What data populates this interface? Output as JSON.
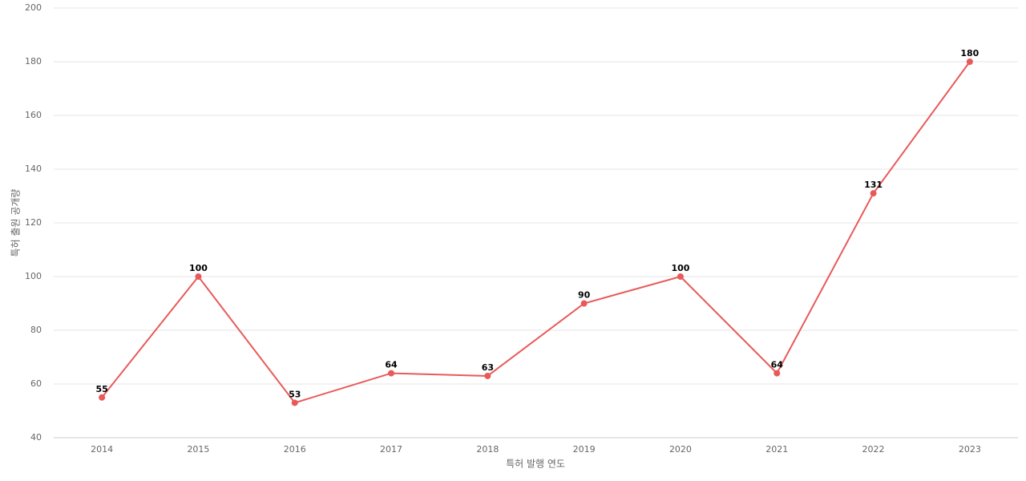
{
  "chart_data": {
    "type": "line",
    "x_label": "특허 발행 연도",
    "y_label": "특허 출원 공개량",
    "categories": [
      "2014",
      "2015",
      "2016",
      "2017",
      "2018",
      "2019",
      "2020",
      "2021",
      "2022",
      "2023"
    ],
    "series": [
      {
        "name": "특허 출원 공개량",
        "color": "#e85a5a",
        "values": [
          55,
          100,
          53,
          64,
          63,
          90,
          100,
          64,
          131,
          180
        ]
      }
    ],
    "ylim": [
      40,
      200
    ],
    "yticks": [
      40,
      60,
      80,
      100,
      120,
      140,
      160,
      180,
      200
    ],
    "grid": true
  }
}
